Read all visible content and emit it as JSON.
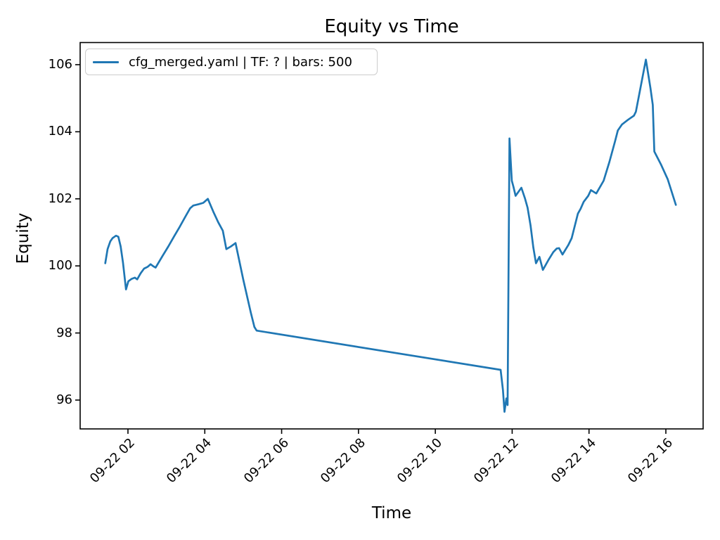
{
  "figure": {
    "background": "#ffffff"
  },
  "chart_data": {
    "type": "line",
    "title": "Equity vs Time",
    "xlabel": "Time",
    "ylabel": "Equity",
    "grid": false,
    "legend_position": "upper left",
    "line_color": "#1f77b4",
    "axis_color": "#000000",
    "xlim_hours": [
      0.756,
      16.97
    ],
    "ylim": [
      95.14,
      106.66
    ],
    "x_ticks": [
      {
        "hour": 2,
        "label": "09-22 02"
      },
      {
        "hour": 4,
        "label": "09-22 04"
      },
      {
        "hour": 6,
        "label": "09-22 06"
      },
      {
        "hour": 8,
        "label": "09-22 08"
      },
      {
        "hour": 10,
        "label": "09-22 10"
      },
      {
        "hour": 12,
        "label": "09-22 12"
      },
      {
        "hour": 14,
        "label": "09-22 14"
      },
      {
        "hour": 16,
        "label": "09-22 16"
      }
    ],
    "y_ticks": [
      {
        "value": 96,
        "label": "96"
      },
      {
        "value": 98,
        "label": "98"
      },
      {
        "value": 100,
        "label": "100"
      },
      {
        "value": 102,
        "label": "102"
      },
      {
        "value": 104,
        "label": "104"
      },
      {
        "value": 106,
        "label": "106"
      }
    ],
    "series": [
      {
        "name": "cfg_merged.yaml | TF: ? | bars: 500",
        "color": "#1f77b4",
        "points": [
          [
            1.41,
            100.08
          ],
          [
            1.47,
            100.5
          ],
          [
            1.54,
            100.73
          ],
          [
            1.6,
            100.83
          ],
          [
            1.69,
            100.9
          ],
          [
            1.75,
            100.87
          ],
          [
            1.81,
            100.58
          ],
          [
            1.87,
            100.1
          ],
          [
            1.95,
            99.3
          ],
          [
            2.01,
            99.54
          ],
          [
            2.09,
            99.61
          ],
          [
            2.18,
            99.65
          ],
          [
            2.24,
            99.6
          ],
          [
            2.33,
            99.78
          ],
          [
            2.42,
            99.92
          ],
          [
            2.51,
            99.97
          ],
          [
            2.59,
            100.05
          ],
          [
            2.66,
            99.99
          ],
          [
            2.72,
            99.95
          ],
          [
            2.9,
            100.3
          ],
          [
            3.05,
            100.58
          ],
          [
            3.2,
            100.88
          ],
          [
            3.35,
            101.17
          ],
          [
            3.5,
            101.48
          ],
          [
            3.62,
            101.72
          ],
          [
            3.7,
            101.8
          ],
          [
            3.84,
            101.84
          ],
          [
            3.96,
            101.88
          ],
          [
            4.08,
            102.0
          ],
          [
            4.22,
            101.62
          ],
          [
            4.35,
            101.3
          ],
          [
            4.47,
            101.05
          ],
          [
            4.56,
            100.5
          ],
          [
            4.68,
            100.58
          ],
          [
            4.8,
            100.68
          ],
          [
            5.0,
            99.6
          ],
          [
            5.2,
            98.6
          ],
          [
            5.29,
            98.18
          ],
          [
            5.35,
            98.07
          ],
          [
            11.7,
            96.9
          ],
          [
            11.76,
            96.3
          ],
          [
            11.8,
            95.65
          ],
          [
            11.85,
            96.05
          ],
          [
            11.88,
            95.85
          ],
          [
            11.93,
            103.8
          ],
          [
            11.99,
            102.54
          ],
          [
            12.03,
            102.37
          ],
          [
            12.09,
            102.09
          ],
          [
            12.24,
            102.33
          ],
          [
            12.33,
            102.02
          ],
          [
            12.4,
            101.74
          ],
          [
            12.48,
            101.2
          ],
          [
            12.55,
            100.55
          ],
          [
            12.62,
            100.08
          ],
          [
            12.71,
            100.27
          ],
          [
            12.8,
            99.88
          ],
          [
            12.94,
            100.17
          ],
          [
            13.07,
            100.41
          ],
          [
            13.16,
            100.52
          ],
          [
            13.22,
            100.53
          ],
          [
            13.31,
            100.34
          ],
          [
            13.46,
            100.62
          ],
          [
            13.55,
            100.83
          ],
          [
            13.71,
            101.56
          ],
          [
            13.78,
            101.7
          ],
          [
            13.86,
            101.91
          ],
          [
            13.98,
            102.09
          ],
          [
            14.05,
            102.26
          ],
          [
            14.19,
            102.16
          ],
          [
            14.38,
            102.54
          ],
          [
            14.53,
            103.1
          ],
          [
            14.68,
            103.73
          ],
          [
            14.75,
            104.04
          ],
          [
            14.86,
            104.22
          ],
          [
            15.02,
            104.36
          ],
          [
            15.17,
            104.48
          ],
          [
            15.22,
            104.6
          ],
          [
            15.48,
            106.15
          ],
          [
            15.6,
            105.3
          ],
          [
            15.66,
            104.8
          ],
          [
            15.7,
            103.41
          ],
          [
            15.87,
            103.03
          ],
          [
            16.05,
            102.58
          ],
          [
            16.26,
            101.82
          ]
        ]
      }
    ]
  }
}
